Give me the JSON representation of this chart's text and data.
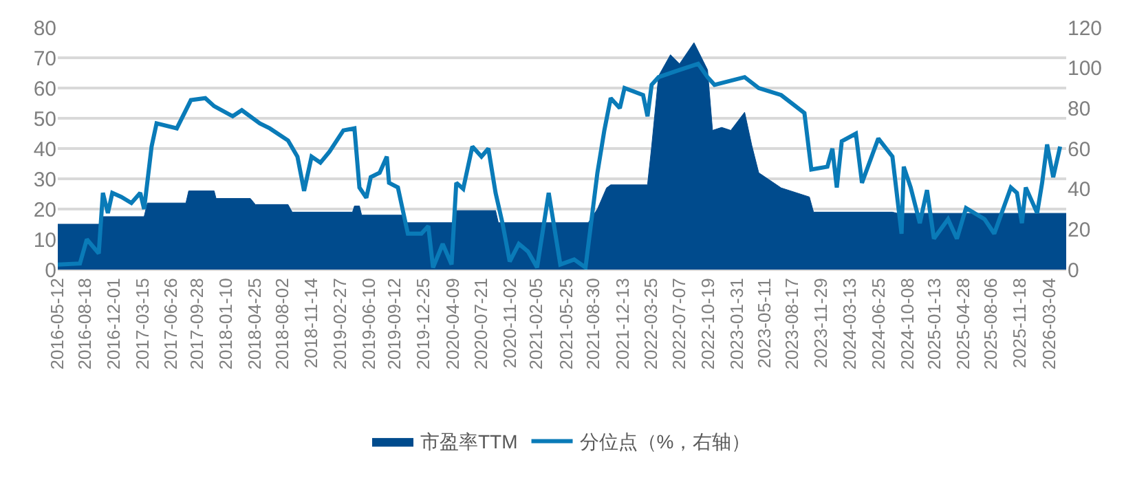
{
  "chart_data": {
    "type": "area",
    "legend": "bottom",
    "grid": "y",
    "xlim": [
      "2016-05-12",
      "2026-05-04"
    ],
    "xticks": [
      "2016-05-12",
      "2016-08-18",
      "2016-12-01",
      "2017-03-15",
      "2017-06-26",
      "2017-09-28",
      "2018-01-10",
      "2018-04-25",
      "2018-08-02",
      "2018-11-14",
      "2019-02-27",
      "2019-06-10",
      "2019-09-12",
      "2019-12-25",
      "2020-04-09",
      "2020-07-21",
      "2020-11-02",
      "2021-02-05",
      "2021-05-25",
      "2021-08-30",
      "2021-12-13",
      "2022-03-25",
      "2022-07-07",
      "2022-10-19",
      "2023-01-31",
      "2023-05-11",
      "2023-08-17",
      "2023-11-29",
      "2024-03-13",
      "2024-06-25",
      "2024-10-08",
      "2025-01-13",
      "2025-04-28",
      "2025-08-06",
      "2025-11-18",
      "2026-03-04"
    ],
    "ylim": [
      0,
      80
    ],
    "yticks": [
      0,
      10,
      20,
      30,
      40,
      50,
      60,
      70,
      80
    ],
    "y2lim": [
      0,
      120
    ],
    "y2ticks": [
      0,
      20,
      40,
      60,
      80,
      100,
      120
    ],
    "series": [
      {
        "name": "市盈率TTM",
        "color": "#004b8d",
        "x": [
          "2016-05-12",
          "2016-10-15",
          "2016-10-22",
          "2017-03-20",
          "2017-04-01",
          "2017-08-18",
          "2017-08-28",
          "2017-11-28",
          "2017-12-05",
          "2018-04-08",
          "2018-04-26",
          "2018-08-22",
          "2018-09-06",
          "2019-04-12",
          "2019-04-19",
          "2019-05-07",
          "2019-05-15",
          "2019-10-12",
          "2019-10-20",
          "2020-04-12",
          "2020-04-21",
          "2020-09-10",
          "2020-09-20",
          "2021-08-11",
          "2021-09-13",
          "2021-10-16",
          "2021-10-31",
          "2022-03-13",
          "2022-03-28",
          "2022-04-22",
          "2022-06-04",
          "2022-07-07",
          "2022-08-28",
          "2022-10-16",
          "2022-11-03",
          "2022-12-06",
          "2023-01-08",
          "2023-02-27",
          "2023-03-25",
          "2023-04-19",
          "2023-07-09",
          "2023-10-19",
          "2023-11-03",
          "2024-08-14",
          "2024-09-01",
          "2026-05-04"
        ],
        "values": [
          15,
          15,
          17.5,
          17.5,
          22,
          22,
          26,
          26,
          23.5,
          23.5,
          21.5,
          21.5,
          19,
          19,
          21,
          21,
          18,
          18,
          15.5,
          15.5,
          19.5,
          19.5,
          15.5,
          15.5,
          20,
          27,
          28,
          28,
          40.7,
          64,
          71,
          68,
          75,
          66,
          46,
          47,
          46,
          52,
          41,
          32,
          27,
          24,
          19,
          19,
          18.6,
          18.6
        ]
      },
      {
        "name": "分位点（%，右轴）",
        "type": "line",
        "axis": "y2",
        "color": "#0a7bb8",
        "x": [
          "2016-05-12",
          "2016-07-31",
          "2016-08-25",
          "2016-10-07",
          "2016-10-22",
          "2016-11-09",
          "2016-11-25",
          "2016-12-28",
          "2017-02-02",
          "2017-03-06",
          "2017-03-20",
          "2017-04-16",
          "2017-05-04",
          "2017-07-16",
          "2017-09-05",
          "2017-10-27",
          "2017-11-28",
          "2018-02-03",
          "2018-03-08",
          "2018-05-12",
          "2018-06-17",
          "2018-08-22",
          "2018-09-25",
          "2018-10-19",
          "2018-11-15",
          "2018-12-17",
          "2019-01-19",
          "2019-03-10",
          "2019-04-19",
          "2019-05-07",
          "2019-06-01",
          "2019-06-17",
          "2019-07-19",
          "2019-08-14",
          "2019-08-22",
          "2019-09-23",
          "2019-10-29",
          "2019-12-17",
          "2020-01-11",
          "2020-01-28",
          "2020-03-03",
          "2020-04-04",
          "2020-04-21",
          "2020-05-16",
          "2020-06-18",
          "2020-07-21",
          "2020-08-15",
          "2020-09-10",
          "2020-10-05",
          "2020-10-31",
          "2020-12-03",
          "2021-01-05",
          "2021-02-07",
          "2021-03-21",
          "2021-05-02",
          "2021-06-21",
          "2021-08-01",
          "2021-09-13",
          "2021-10-08",
          "2021-10-31",
          "2021-12-03",
          "2021-12-20",
          "2022-02-25",
          "2022-03-13",
          "2022-03-28",
          "2022-04-22",
          "2022-07-07",
          "2022-09-12",
          "2022-10-16",
          "2022-11-10",
          "2023-02-27",
          "2023-04-19",
          "2023-07-09",
          "2023-10-01",
          "2023-10-26",
          "2023-12-23",
          "2024-01-10",
          "2024-01-26",
          "2024-02-13",
          "2024-04-04",
          "2024-04-26",
          "2024-06-24",
          "2024-08-14",
          "2024-09-16",
          "2024-09-24",
          "2024-10-19",
          "2024-11-21",
          "2024-12-17",
          "2025-01-11",
          "2025-03-03",
          "2025-04-04",
          "2025-05-07",
          "2025-07-13",
          "2025-08-17",
          "2025-10-16",
          "2025-11-07",
          "2025-11-25",
          "2025-12-09",
          "2026-01-19",
          "2026-02-06",
          "2026-02-24",
          "2026-03-18",
          "2026-04-12"
        ],
        "values": [
          2.5,
          3,
          15,
          8,
          38,
          28,
          38,
          36,
          33,
          38,
          30,
          61,
          72.5,
          70,
          84,
          85,
          81,
          76,
          79,
          72.5,
          70,
          64,
          56,
          39,
          56,
          53,
          58.5,
          69,
          70,
          40.7,
          35.6,
          45.8,
          48,
          56,
          43,
          40.7,
          17.8,
          17.8,
          21.6,
          1,
          12.7,
          2.5,
          43,
          40,
          61,
          56,
          60,
          38,
          23,
          4,
          12.7,
          9,
          1,
          38,
          2.5,
          5,
          1,
          48,
          69,
          85,
          80,
          90,
          86.5,
          76,
          91.6,
          95.4,
          99,
          102,
          95.4,
          91.6,
          95.4,
          90,
          86.5,
          77.6,
          49.6,
          51,
          60,
          40.7,
          63.6,
          67.4,
          43,
          65,
          56,
          17.8,
          51,
          40.7,
          23,
          39.4,
          15.3,
          25,
          15.3,
          30.5,
          25,
          17.8,
          40.7,
          38,
          23,
          40.7,
          28,
          43,
          62,
          45.8,
          61
        ]
      }
    ]
  }
}
